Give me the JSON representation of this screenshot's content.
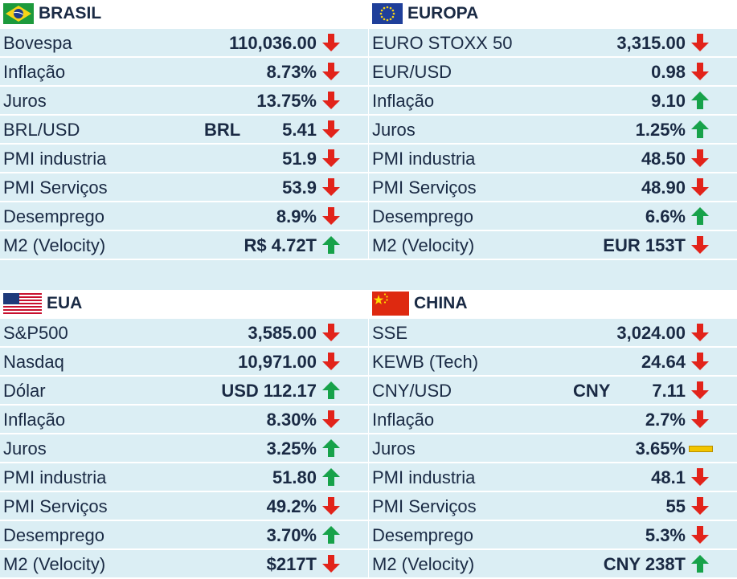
{
  "colors": {
    "row_bg": "#dbeef4",
    "text": "#1a2a44",
    "up": "#17a24a",
    "down": "#e2231a",
    "flat": "#f2c500"
  },
  "panels": [
    {
      "title": "BRASIL",
      "flag": "brazil-flag",
      "rows": [
        {
          "label": "Bovespa",
          "unit": "",
          "value": "110,036.00",
          "trend": "down"
        },
        {
          "label": "Inflação",
          "unit": "",
          "value": "8.73%",
          "trend": "down"
        },
        {
          "label": "Juros",
          "unit": "",
          "value": "13.75%",
          "trend": "down"
        },
        {
          "label": "BRL/USD",
          "unit": "BRL",
          "value": "5.41",
          "trend": "down"
        },
        {
          "label": "PMI industria",
          "unit": "",
          "value": "51.9",
          "trend": "down"
        },
        {
          "label": "PMI Serviços",
          "unit": "",
          "value": "53.9",
          "trend": "down"
        },
        {
          "label": "Desemprego",
          "unit": "",
          "value": "8.9%",
          "trend": "down"
        },
        {
          "label": "M2 (Velocity)",
          "unit": "",
          "value": "R$ 4.72T",
          "trend": "up"
        }
      ]
    },
    {
      "title": "EUROPA",
      "flag": "eu-flag",
      "rows": [
        {
          "label": "EURO STOXX 50",
          "unit": "",
          "value": "3,315.00",
          "trend": "down"
        },
        {
          "label": "EUR/USD",
          "unit": "",
          "value": "0.98",
          "trend": "down"
        },
        {
          "label": "Inflação",
          "unit": "",
          "value": "9.10",
          "trend": "up"
        },
        {
          "label": "Juros",
          "unit": "",
          "value": "1.25%",
          "trend": "up"
        },
        {
          "label": "PMI industria",
          "unit": "",
          "value": "48.50",
          "trend": "down"
        },
        {
          "label": "PMI Serviços",
          "unit": "",
          "value": "48.90",
          "trend": "down"
        },
        {
          "label": "Desemprego",
          "unit": "",
          "value": "6.6%",
          "trend": "up"
        },
        {
          "label": "M2 (Velocity)",
          "unit": "",
          "value": "EUR 153T",
          "trend": "down"
        }
      ]
    },
    {
      "title": "EUA",
      "flag": "usa-flag",
      "rows": [
        {
          "label": "S&P500",
          "unit": "",
          "value": "3,585.00",
          "trend": "down"
        },
        {
          "label": "Nasdaq",
          "unit": "",
          "value": "10,971.00",
          "trend": "down"
        },
        {
          "label": "Dólar",
          "unit": "",
          "value": "USD 112.17",
          "trend": "up"
        },
        {
          "label": "Inflação",
          "unit": "",
          "value": "8.30%",
          "trend": "down"
        },
        {
          "label": "Juros",
          "unit": "",
          "value": "3.25%",
          "trend": "up"
        },
        {
          "label": "PMI industria",
          "unit": "",
          "value": "51.80",
          "trend": "up"
        },
        {
          "label": "PMI Serviços",
          "unit": "",
          "value": "49.2%",
          "trend": "down"
        },
        {
          "label": "Desemprego",
          "unit": "",
          "value": "3.70%",
          "trend": "up"
        },
        {
          "label": "M2 (Velocity)",
          "unit": "",
          "value": "$217T",
          "trend": "down"
        }
      ]
    },
    {
      "title": "CHINA",
      "flag": "china-flag",
      "rows": [
        {
          "label": "SSE",
          "unit": "",
          "value": "3,024.00",
          "trend": "down"
        },
        {
          "label": "KEWB (Tech)",
          "unit": "",
          "value": "24.64",
          "trend": "down"
        },
        {
          "label": "CNY/USD",
          "unit": "CNY",
          "value": "7.11",
          "trend": "down"
        },
        {
          "label": "Inflação",
          "unit": "",
          "value": "2.7%",
          "trend": "down"
        },
        {
          "label": "Juros",
          "unit": "",
          "value": "3.65%",
          "trend": "flat"
        },
        {
          "label": "PMI industria",
          "unit": "",
          "value": "48.1",
          "trend": "down"
        },
        {
          "label": "PMI Serviços",
          "unit": "",
          "value": "55",
          "trend": "down"
        },
        {
          "label": "Desemprego",
          "unit": "",
          "value": "5.3%",
          "trend": "down"
        },
        {
          "label": "M2 (Velocity)",
          "unit": "",
          "value": "CNY 238T",
          "trend": "up"
        }
      ]
    }
  ]
}
